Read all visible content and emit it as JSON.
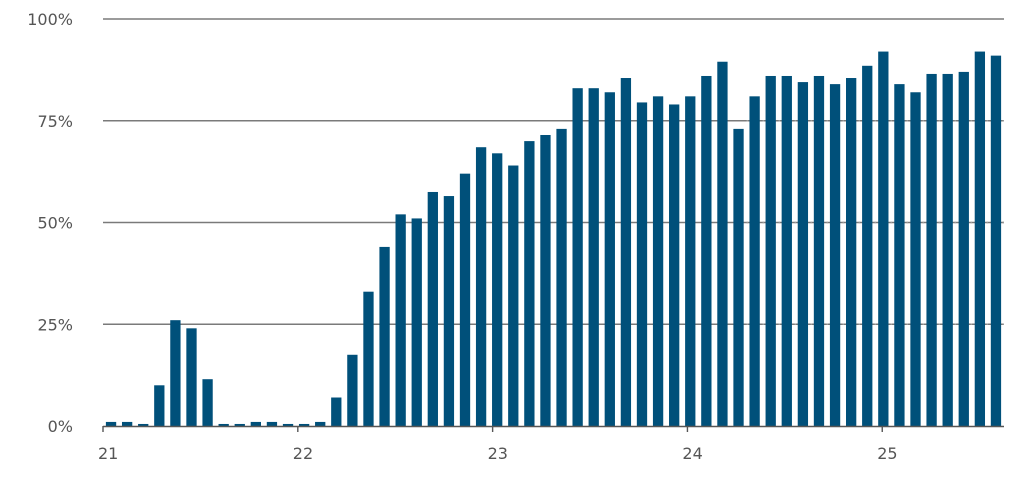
{
  "chart_data": {
    "type": "bar",
    "title": "",
    "xlabel": "",
    "ylabel": "",
    "ylim": [
      0,
      100
    ],
    "y_ticks": [
      0,
      25,
      50,
      75,
      100
    ],
    "y_tick_labels": [
      "0%",
      "25%",
      "50%",
      "75%",
      "100%"
    ],
    "x_tick_labels": [
      "21",
      "22",
      "23",
      "24",
      "25"
    ],
    "x_range": [
      21,
      25.625
    ],
    "bar_color": "#00507a",
    "grid": true,
    "legend": "none",
    "values": [
      1,
      1,
      0.5,
      10,
      26,
      24,
      11.5,
      0.5,
      0.5,
      1,
      1,
      0.5,
      0.5,
      1,
      7,
      17.5,
      33,
      44,
      52,
      51,
      57.5,
      56.5,
      62,
      68.5,
      67,
      64,
      70,
      71.5,
      73,
      83,
      83,
      82,
      85.5,
      79.5,
      81,
      79,
      81,
      86,
      89.5,
      73,
      81,
      86,
      86,
      84.5,
      86,
      84,
      85.5,
      88.5,
      92,
      84,
      82,
      86.5,
      86.5,
      87,
      92,
      91
    ]
  }
}
